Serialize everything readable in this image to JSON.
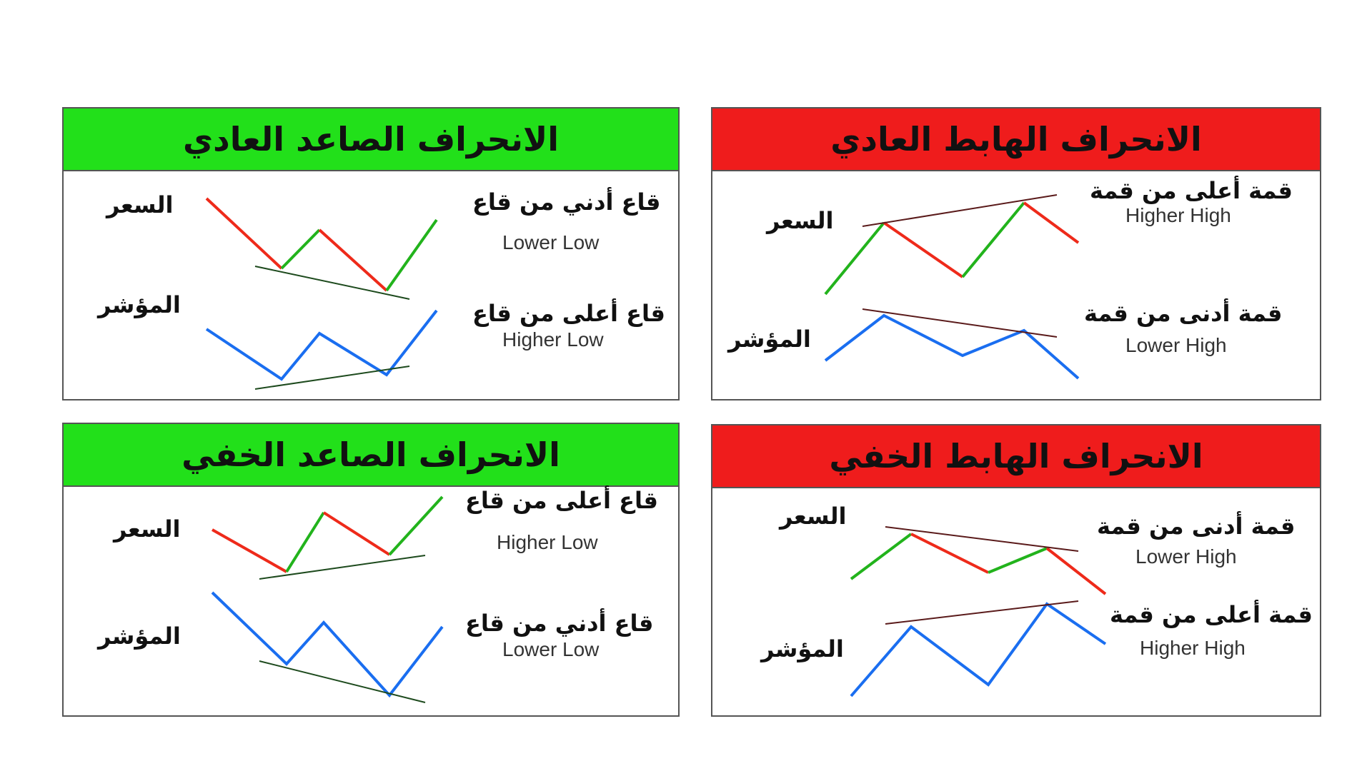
{
  "colors": {
    "bullish_header": "#22e01a",
    "bearish_header": "#ef1c1c",
    "price_up": "#22b31c",
    "price_down": "#ee2a1a",
    "indicator": "#1a6ef0",
    "trend_line_dark_green": "#1d4a1d",
    "trend_line_dark_red": "#5a1a1a"
  },
  "panels": {
    "regular_bullish": {
      "title": "الانحراف الصاعد العادي",
      "price_label": "السعر",
      "indicator_label": "المؤشر",
      "price_note_ar": "قاع أدني من قاع",
      "price_note_en": "Lower Low",
      "indicator_note_ar": "قاع أعلى من قاع",
      "indicator_note_en": "Higher Low"
    },
    "regular_bearish": {
      "title": "الانحراف الهابط العادي",
      "price_label": "السعر",
      "indicator_label": "المؤشر",
      "price_note_ar": "قمة أعلى من قمة",
      "price_note_en": "Higher High",
      "indicator_note_ar": "قمة أدنى من قمة",
      "indicator_note_en": "Lower High"
    },
    "hidden_bullish": {
      "title": "الانحراف الصاعد الخفي",
      "price_label": "السعر",
      "indicator_label": "المؤشر",
      "price_note_ar": "قاع أعلى من قاع",
      "price_note_en": "Higher Low",
      "indicator_note_ar": "قاع أدني من قاع",
      "indicator_note_en": "Lower Low"
    },
    "hidden_bearish": {
      "title": "الانحراف الهابط الخفي",
      "price_label": "السعر",
      "indicator_label": "المؤشر",
      "price_note_ar": "قمة أدنى من قمة",
      "price_note_en": "Lower High",
      "indicator_note_ar": "قمة أعلى من قمة",
      "indicator_note_en": "Higher High"
    }
  }
}
